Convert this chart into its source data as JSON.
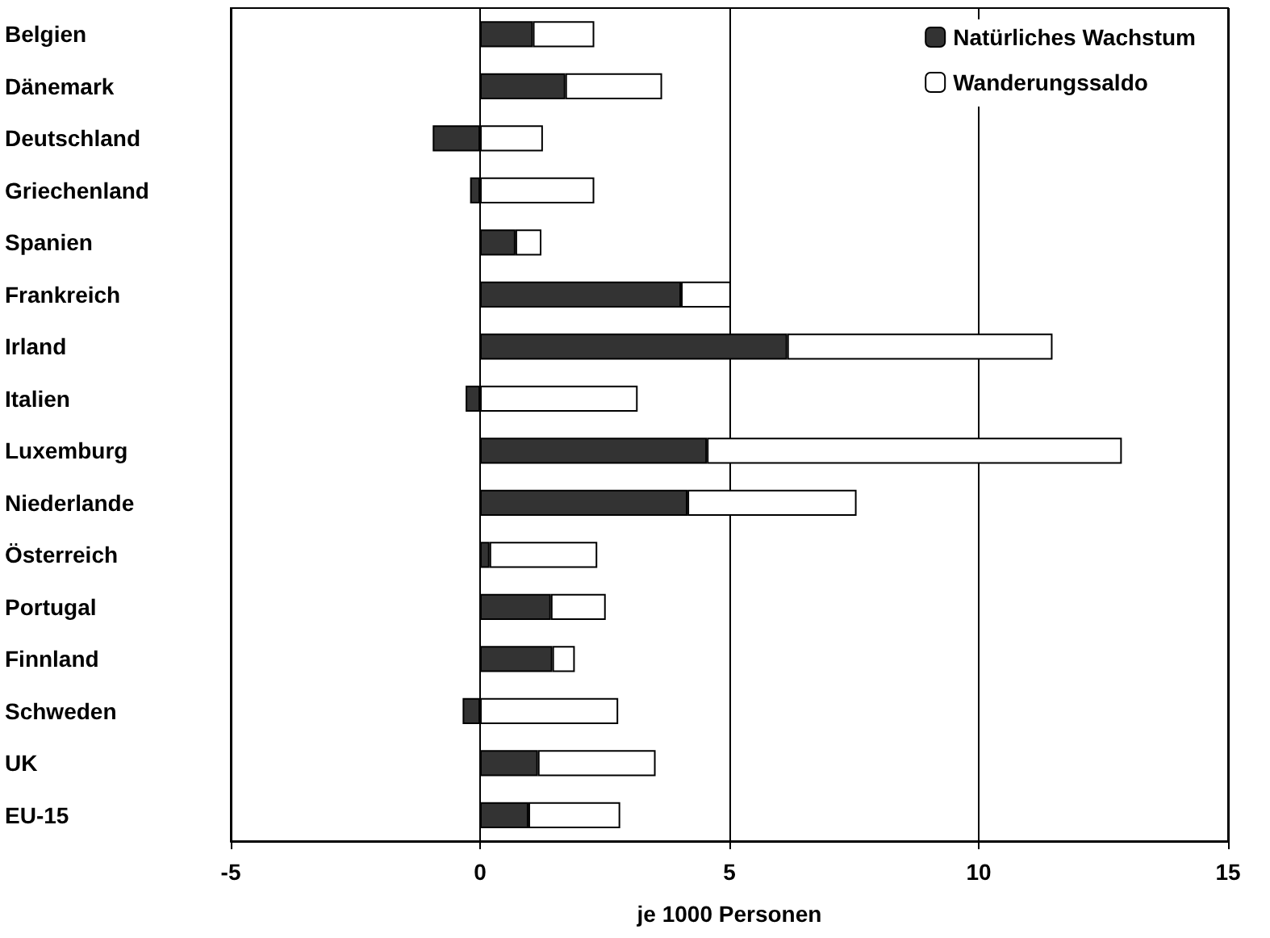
{
  "chart_data": {
    "type": "bar",
    "orientation": "horizontal",
    "stacked": true,
    "xlabel": "je 1000 Personen",
    "categories": [
      "Belgien",
      "Dänemark",
      "Deutschland",
      "Griechenland",
      "Spanien",
      "Frankreich",
      "Irland",
      "Italien",
      "Luxemburg",
      "Niederlande",
      "Österreich",
      "Portugal",
      "Finnland",
      "Schweden",
      "UK",
      "EU-15"
    ],
    "series": [
      {
        "name": "Natürliches Wachstum",
        "color": "#333333",
        "values": [
          1.06,
          1.71,
          -0.95,
          -0.2,
          0.71,
          4.03,
          6.16,
          -0.29,
          4.55,
          4.16,
          0.19,
          1.42,
          1.45,
          -0.35,
          1.16,
          0.97
        ]
      },
      {
        "name": "Wanderungssaldo",
        "color": "#ffffff",
        "values": [
          1.23,
          1.94,
          1.26,
          2.29,
          0.52,
          1.0,
          5.32,
          3.16,
          8.32,
          3.39,
          2.16,
          1.1,
          0.45,
          2.77,
          2.36,
          1.84
        ]
      }
    ],
    "xlim": [
      -5,
      15
    ],
    "xticks": [
      -5,
      0,
      5,
      10,
      15
    ],
    "grid": "x",
    "legend": "top right"
  }
}
